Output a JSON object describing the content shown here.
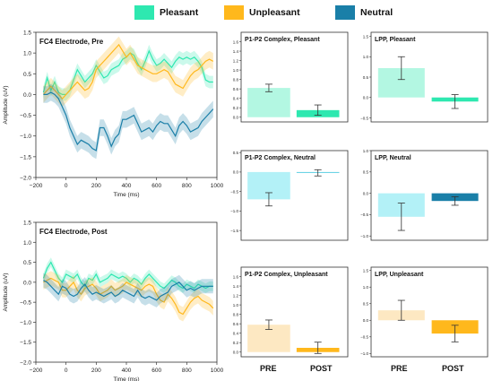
{
  "legend": {
    "items": [
      {
        "label": "Pleasant",
        "color": "#2ee8b0"
      },
      {
        "label": "Unpleasant",
        "color": "#ffb81c"
      },
      {
        "label": "Neutral",
        "color": "#1a7fa8"
      }
    ]
  },
  "footer": {
    "pre_label": "PRE",
    "post_label": "POST"
  },
  "chart_data": [
    {
      "type": "line",
      "title": "FC4 Electrode, Pre",
      "xlabel": "Time (ms)",
      "ylabel": "Amplitude (uV)",
      "xlim": [
        -200,
        1000
      ],
      "ylim": [
        -2.0,
        1.5
      ],
      "xticks": [
        "−200",
        "0",
        "200",
        "400",
        "600",
        "800",
        "1000"
      ],
      "yticks": [
        "−2.0",
        "−1.5",
        "−1.0",
        "−0.5",
        "0.0",
        "0.5",
        "1.0",
        "1.5"
      ],
      "x": [
        -150,
        -125,
        -100,
        -75,
        -50,
        -25,
        0,
        25,
        50,
        75,
        100,
        125,
        150,
        175,
        200,
        225,
        250,
        275,
        300,
        325,
        350,
        375,
        400,
        425,
        450,
        475,
        500,
        525,
        550,
        575,
        600,
        625,
        650,
        675,
        700,
        725,
        750,
        775,
        800,
        825,
        850,
        875,
        900,
        925,
        950,
        975
      ],
      "series": [
        {
          "name": "Pleasant",
          "color": "#2ee8b0",
          "band": 0.15,
          "values": [
            0.05,
            0.4,
            0.1,
            0.3,
            0.05,
            0.0,
            0.0,
            0.1,
            0.35,
            0.6,
            0.45,
            0.3,
            0.4,
            0.5,
            0.7,
            0.55,
            0.4,
            0.45,
            0.6,
            0.65,
            0.7,
            0.85,
            0.9,
            1.0,
            0.95,
            0.75,
            0.6,
            0.8,
            1.05,
            0.85,
            0.7,
            0.75,
            0.85,
            0.75,
            0.65,
            0.8,
            0.9,
            0.85,
            0.9,
            0.85,
            0.9,
            0.8,
            0.65,
            0.35,
            0.3,
            0.3
          ]
        },
        {
          "name": "Unpleasant",
          "color": "#ffb81c",
          "band": 0.2,
          "values": [
            0.0,
            0.1,
            0.2,
            0.1,
            0.0,
            -0.1,
            0.0,
            0.1,
            0.2,
            0.3,
            0.2,
            0.1,
            0.15,
            0.3,
            0.6,
            0.7,
            0.8,
            0.9,
            1.0,
            1.1,
            1.2,
            1.05,
            0.9,
            1.0,
            0.85,
            0.7,
            0.65,
            0.6,
            0.55,
            0.5,
            0.5,
            0.55,
            0.6,
            0.55,
            0.4,
            0.25,
            0.2,
            0.15,
            0.3,
            0.45,
            0.55,
            0.6,
            0.7,
            0.8,
            0.85,
            0.8
          ]
        },
        {
          "name": "Neutral",
          "color": "#1a7fa8",
          "band": 0.2,
          "values": [
            0.0,
            0.0,
            0.05,
            0.0,
            -0.1,
            -0.3,
            -0.5,
            -0.8,
            -1.0,
            -1.2,
            -1.1,
            -1.15,
            -1.2,
            -1.3,
            -1.35,
            -0.8,
            -0.8,
            -1.0,
            -1.25,
            -1.05,
            -0.95,
            -0.6,
            -0.6,
            -0.55,
            -0.5,
            -0.7,
            -0.9,
            -0.85,
            -0.8,
            -0.9,
            -0.75,
            -0.65,
            -0.7,
            -0.7,
            -0.85,
            -1.0,
            -0.75,
            -0.65,
            -0.75,
            -0.9,
            -0.85,
            -0.8,
            -0.65,
            -0.55,
            -0.45,
            -0.35
          ]
        }
      ]
    },
    {
      "type": "line",
      "title": "FC4 Electrode, Post",
      "xlabel": "Time (ms)",
      "ylabel": "Amplitude (uV)",
      "xlim": [
        -200,
        1000
      ],
      "ylim": [
        -2.0,
        1.5
      ],
      "xticks": [
        "−200",
        "0",
        "200",
        "400",
        "600",
        "800",
        "1000"
      ],
      "yticks": [
        "−2.0",
        "−1.5",
        "−1.0",
        "−0.5",
        "0.0",
        "0.5",
        "1.0",
        "1.5"
      ],
      "x": [
        -150,
        -125,
        -100,
        -75,
        -50,
        -25,
        0,
        25,
        50,
        75,
        100,
        125,
        150,
        175,
        200,
        225,
        250,
        275,
        300,
        325,
        350,
        375,
        400,
        425,
        450,
        475,
        500,
        525,
        550,
        575,
        600,
        625,
        650,
        675,
        700,
        725,
        750,
        775,
        800,
        825,
        850,
        875,
        900,
        925,
        950,
        975
      ],
      "series": [
        {
          "name": "Pleasant",
          "color": "#2ee8b0",
          "band": 0.12,
          "values": [
            0.1,
            0.35,
            0.5,
            0.3,
            0.1,
            0.0,
            0.2,
            0.15,
            0.1,
            0.2,
            0.0,
            -0.1,
            0.1,
            0.05,
            0.2,
            0.0,
            0.05,
            0.1,
            0.2,
            0.15,
            0.1,
            0.15,
            0.1,
            0.0,
            0.1,
            0.05,
            -0.05,
            0.1,
            0.2,
            0.1,
            0.0,
            -0.1,
            -0.15,
            -0.05,
            0.05,
            0.0,
            -0.1,
            -0.15,
            -0.05,
            -0.1,
            -0.15,
            -0.05,
            -0.1,
            -0.15,
            -0.1,
            -0.1
          ]
        },
        {
          "name": "Unpleasant",
          "color": "#ffb81c",
          "band": 0.18,
          "values": [
            0.0,
            0.05,
            0.1,
            0.05,
            0.0,
            -0.2,
            -0.2,
            -0.1,
            0.0,
            -0.2,
            -0.3,
            -0.15,
            -0.1,
            -0.05,
            -0.15,
            -0.3,
            -0.25,
            -0.2,
            -0.1,
            -0.2,
            -0.15,
            -0.1,
            0.0,
            -0.05,
            -0.1,
            -0.15,
            -0.2,
            -0.1,
            -0.05,
            -0.1,
            -0.3,
            -0.45,
            -0.5,
            -0.3,
            -0.4,
            -0.55,
            -0.75,
            -0.8,
            -0.65,
            -0.5,
            -0.4,
            -0.35,
            -0.45,
            -0.5,
            -0.55,
            -0.65
          ]
        },
        {
          "name": "Neutral",
          "color": "#1a7fa8",
          "band": 0.18,
          "values": [
            0.05,
            0.0,
            -0.1,
            -0.2,
            -0.3,
            -0.1,
            -0.15,
            -0.3,
            -0.35,
            -0.3,
            -0.15,
            -0.05,
            -0.2,
            -0.3,
            -0.25,
            -0.3,
            -0.35,
            -0.3,
            -0.25,
            -0.35,
            -0.3,
            -0.2,
            -0.25,
            -0.3,
            -0.35,
            -0.2,
            -0.35,
            -0.4,
            -0.35,
            -0.4,
            -0.45,
            -0.35,
            -0.3,
            -0.25,
            -0.1,
            -0.05,
            0.0,
            -0.1,
            -0.2,
            -0.15,
            -0.2,
            -0.15,
            -0.1,
            -0.1,
            -0.1,
            -0.1
          ]
        }
      ]
    },
    {
      "type": "bar",
      "title": "P1-P2 Complex, Pleasant",
      "categories": [
        "PRE",
        "POST"
      ],
      "ylim": [
        -0.1,
        1.8
      ],
      "yticks": [
        "0.0",
        "0.2",
        "0.4",
        "0.6",
        "0.8",
        "1.0",
        "1.2",
        "1.4",
        "1.6"
      ],
      "values": [
        0.62,
        0.15
      ],
      "errors": [
        0.08,
        0.11
      ],
      "colors": [
        "#b3f7e2",
        "#2ee8b0"
      ]
    },
    {
      "type": "bar",
      "title": "LPP, Pleasant",
      "categories": [
        "PRE",
        "POST"
      ],
      "ylim": [
        -0.6,
        1.6
      ],
      "yticks": [
        "−0.5",
        "0.0",
        "0.5",
        "1.0",
        "1.5"
      ],
      "values": [
        0.72,
        -0.1
      ],
      "errors": [
        0.28,
        0.17
      ],
      "colors": [
        "#b3f7e2",
        "#2ee8b0"
      ]
    },
    {
      "type": "bar",
      "title": "P1-P2 Complex, Neutral",
      "categories": [
        "PRE",
        "POST"
      ],
      "ylim": [
        -1.75,
        0.55
      ],
      "yticks": [
        "−1.5",
        "−1.0",
        "−0.5",
        "0.0",
        "0.5"
      ],
      "values": [
        -0.7,
        -0.02
      ],
      "errors": [
        0.17,
        0.08
      ],
      "colors": [
        "#b3f1f7",
        "#45c9e0"
      ]
    },
    {
      "type": "bar",
      "title": "LPP, Neutral",
      "categories": [
        "PRE",
        "POST"
      ],
      "ylim": [
        -1.1,
        1.0
      ],
      "yticks": [
        "−1.0",
        "−0.5",
        "0.0",
        "0.5",
        "1.0"
      ],
      "values": [
        -0.55,
        -0.18
      ],
      "errors": [
        0.32,
        0.1
      ],
      "colors": [
        "#b3f1f7",
        "#1a7fa8"
      ]
    },
    {
      "type": "bar",
      "title": "P1-P2 Complex, Unpleasant",
      "categories": [
        "PRE",
        "POST"
      ],
      "ylim": [
        -0.1,
        1.8
      ],
      "yticks": [
        "0.0",
        "0.2",
        "0.4",
        "0.6",
        "0.8",
        "1.0",
        "1.2",
        "1.4",
        "1.6"
      ],
      "values": [
        0.58,
        0.09
      ],
      "errors": [
        0.1,
        0.12
      ],
      "colors": [
        "#fde8c2",
        "#ffb81c"
      ]
    },
    {
      "type": "bar",
      "title": "LPP, Unpleasant",
      "categories": [
        "PRE",
        "POST"
      ],
      "ylim": [
        -1.1,
        1.6
      ],
      "yticks": [
        "−1.0",
        "−0.5",
        "0.0",
        "0.5",
        "1.0",
        "1.5"
      ],
      "values": [
        0.3,
        -0.4
      ],
      "errors": [
        0.3,
        0.25
      ],
      "colors": [
        "#fde8c2",
        "#ffb81c"
      ]
    }
  ]
}
